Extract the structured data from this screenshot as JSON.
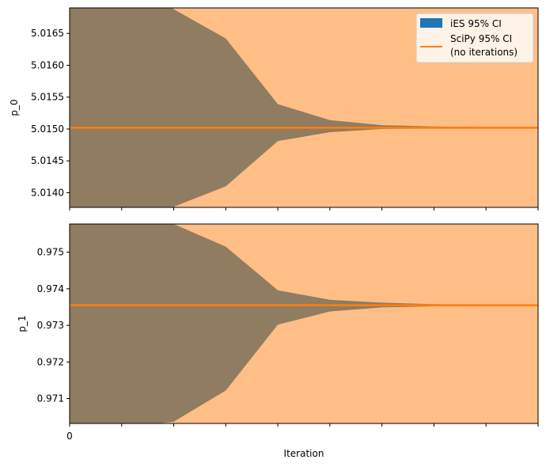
{
  "chart_data": {
    "type": "area",
    "xlabel": "Iteration",
    "x_tick_labels": [
      "0"
    ],
    "legend": {
      "placement": "top-right",
      "entries": [
        {
          "label": "iES 95% CI",
          "color": "#1f77b4",
          "kind": "patch"
        },
        {
          "label_lines": [
            "SciPy 95% CI",
            "(no iterations)"
          ],
          "color": "#ff7f0e",
          "kind": "line"
        }
      ]
    },
    "colors": {
      "scipy_band": "#ffbe86",
      "ies_band": "#8f7c61",
      "scipy_line": "#ff7f0e"
    },
    "iterations": [
      0,
      1,
      2,
      3,
      4,
      5,
      6,
      7,
      8,
      9
    ],
    "panels": [
      {
        "ylabel": "p_0",
        "ylim": [
          5.01377,
          5.0169
        ],
        "yticks": [
          5.014,
          5.0145,
          5.015,
          5.0155,
          5.016,
          5.0165
        ],
        "ytick_labels": [
          "5.0140",
          "5.0145",
          "5.0150",
          "5.0155",
          "5.0160",
          "5.0165"
        ],
        "scipy_ci": [
          5.01377,
          5.0169
        ],
        "scipy_value": 5.01502,
        "ies_upper": [
          5.018,
          5.0175,
          5.01688,
          5.01642,
          5.01539,
          5.01514,
          5.01506,
          5.01504,
          5.01503,
          5.01503
        ],
        "ies_lower": [
          5.012,
          5.0125,
          5.01378,
          5.0141,
          5.01481,
          5.01495,
          5.015,
          5.01501,
          5.01502,
          5.01502
        ]
      },
      {
        "ylabel": "p_1",
        "ylim": [
          0.97032,
          0.97577
        ],
        "yticks": [
          0.971,
          0.972,
          0.973,
          0.974,
          0.975
        ],
        "ytick_labels": [
          "0.971",
          "0.972",
          "0.973",
          "0.974",
          "0.975"
        ],
        "scipy_ci": [
          0.97032,
          0.97577
        ],
        "scipy_value": 0.97355,
        "ies_upper": [
          0.9765,
          0.976,
          0.97577,
          0.97515,
          0.97396,
          0.9737,
          0.97362,
          0.97358,
          0.97356,
          0.97356
        ],
        "ies_lower": [
          0.97,
          0.9702,
          0.97037,
          0.97122,
          0.97302,
          0.97338,
          0.97349,
          0.97352,
          0.97353,
          0.97353
        ]
      }
    ]
  }
}
